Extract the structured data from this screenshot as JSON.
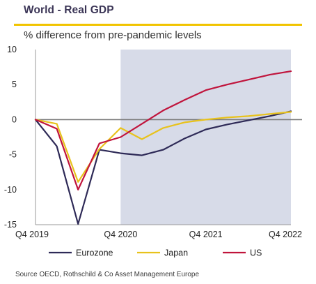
{
  "header": {
    "title": "World - Real GDP",
    "subtitle": "% difference from pre-pandemic levels"
  },
  "source": "Source OECD, Rothschild & Co Asset Management Europe",
  "colors": {
    "title": "#3b3556",
    "accent": "#f1c400",
    "shade": "#d7dbe8",
    "zero_line": "#7a7a7a",
    "axis": "#9a9a9a"
  },
  "chart_data": {
    "type": "line",
    "quarters": [
      "Q4 2019",
      "Q1 2020",
      "Q2 2020",
      "Q3 2020",
      "Q4 2020",
      "Q1 2021",
      "Q2 2021",
      "Q3 2021",
      "Q4 2021",
      "Q1 2022",
      "Q2 2022",
      "Q3 2022",
      "Q4 2022"
    ],
    "x_tick_labels": [
      "Q4 2019",
      "Q4 2020",
      "Q4 2021",
      "Q4 2022"
    ],
    "y_ticks": [
      10,
      5,
      0,
      -5,
      -10,
      -15
    ],
    "ylim": [
      -15,
      10
    ],
    "shaded_region": {
      "from": "Q4 2020",
      "to": "Q4 2022"
    },
    "zero_line": true,
    "series": [
      {
        "name": "Eurozone",
        "color": "#2e2a57",
        "values": [
          0,
          -3.8,
          -14.9,
          -4.3,
          -4.8,
          -5.1,
          -4.3,
          -2.7,
          -1.4,
          -0.7,
          -0.1,
          0.5,
          1.2
        ]
      },
      {
        "name": "Japan",
        "color": "#e8c21c",
        "values": [
          0,
          -0.6,
          -8.9,
          -4.2,
          -1.2,
          -2.8,
          -1.2,
          -0.4,
          0.0,
          0.3,
          0.5,
          0.8,
          1.1
        ]
      },
      {
        "name": "US",
        "color": "#c0143c",
        "values": [
          0,
          -1.3,
          -10.0,
          -3.4,
          -2.5,
          -0.6,
          1.3,
          2.8,
          4.2,
          5.0,
          5.7,
          6.4,
          6.9
        ]
      }
    ]
  }
}
